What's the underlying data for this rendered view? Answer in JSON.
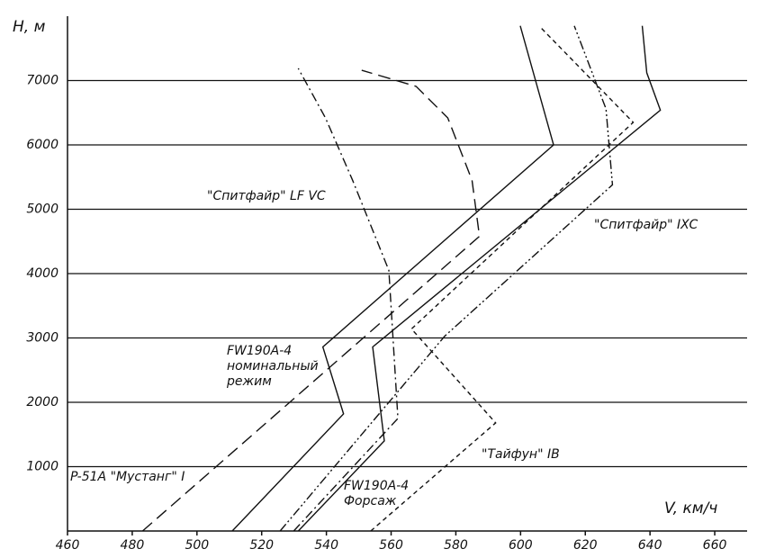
{
  "chart_data": {
    "type": "line",
    "y_label": "H, м",
    "x_label": "V, км/ч",
    "xlim": [
      460,
      670
    ],
    "ylim": [
      0,
      8000
    ],
    "xticks": [
      460,
      480,
      500,
      520,
      540,
      560,
      580,
      600,
      620,
      640,
      660
    ],
    "yticks": [
      1000,
      2000,
      3000,
      4000,
      5000,
      6000,
      7000
    ],
    "grid": true,
    "series": [
      {
        "name": "P-51A \"Мустанг\" I",
        "color": "#111111",
        "dash": "14 7",
        "x": [
          483.2,
          587.3,
          585,
          577.5,
          567.7,
          550.9
        ],
        "values": [
          0,
          4580,
          5450,
          6420,
          6910,
          7160
        ]
      },
      {
        "name": "FW190A-4 номинальный режим",
        "color": "#111111",
        "dash": "none",
        "x": [
          510.9,
          545.3,
          538.9,
          610.2,
          606.3,
          599.9
        ],
        "values": [
          0,
          1820,
          2860,
          6000,
          6700,
          7850
        ]
      },
      {
        "name": "FW190A-4 Форсаж",
        "color": "#111111",
        "dash": "none",
        "x": [
          531.3,
          557.9,
          554.3,
          643.2,
          639,
          637.6
        ],
        "values": [
          0,
          1400,
          2860,
          6540,
          7120,
          7850
        ]
      },
      {
        "name": "\"Спитфайр\" LF VC",
        "color": "#111111",
        "dash": "10 4 2 4",
        "x": [
          529.9,
          562.1,
          559.3,
          548.1,
          539.7,
          531.3
        ],
        "values": [
          0,
          1750,
          4050,
          5450,
          6420,
          7190
        ]
      },
      {
        "name": "\"Спитфайр\" IXC",
        "color": "#111111",
        "dash": "10 3 2 3 2 3",
        "x": [
          525.7,
          576.6,
          628.4,
          626.4,
          616.6
        ],
        "values": [
          0,
          3030,
          5380,
          6560,
          7850
        ]
      },
      {
        "name": "\"Тайфун\" IB",
        "color": "#111111",
        "dash": "5 4",
        "x": [
          553.7,
          592.3,
          566.3,
          634.8,
          606.3
        ],
        "values": [
          0,
          1680,
          3140,
          6350,
          7820
        ]
      }
    ]
  }
}
